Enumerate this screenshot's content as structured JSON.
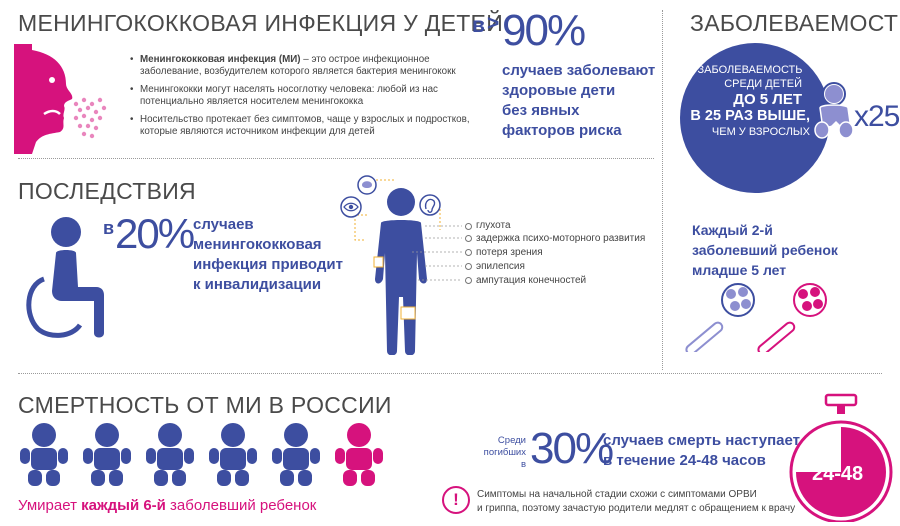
{
  "section1": {
    "title": "МЕНИНГОКОККОВАЯ ИНФЕКЦИЯ У ДЕТЕЙ",
    "bullets": [
      {
        "bold": "Менингококковая инфекция (МИ)",
        "text": " – это острое инфекционное заболевание, возбудителем которого является бактерия менингококк"
      },
      {
        "bold": "",
        "text": "Менингококки могут населять носоглотку человека: любой из нас потенциально является носителем менингококка"
      },
      {
        "bold": "",
        "text": "Носительство протекает без симптомов, чаще у взрослых и подростков, которые являются источником инфекции для детей"
      }
    ],
    "stat_prefix": "в",
    "stat_gt": ">",
    "stat_value": "90%",
    "stat_text": [
      "случаев заболевают",
      "здоровые дети",
      "без явных",
      "факторов риска"
    ]
  },
  "incidence": {
    "title": "ЗАБОЛЕВАЕМОСТЬ",
    "circle_lines": [
      "ЗАБОЛЕВАЕМОСТЬ",
      "СРЕДИ ДЕТЕЙ",
      "ДО 5 ЛЕТ",
      "В 25 РАЗ ВЫШЕ,",
      "ЧЕМ У ВЗРОСЛЫХ"
    ],
    "multiplier": "x25",
    "every_second_1": "Каждый 2-й",
    "every_second_2": "заболевший ребенок",
    "every_second_3": "младше 5 лет"
  },
  "consequences": {
    "title": "ПОСЛЕДСТВИЯ",
    "stat_prefix": "в",
    "stat_value": "20%",
    "stat_text": [
      "случаев",
      "менингококковая",
      "инфекция приводит",
      "к инвалидизации"
    ],
    "legend": [
      "глухота",
      "задержка психо-моторного развития",
      "потеря зрения",
      "эпилепсия",
      "ампутация конечностей"
    ]
  },
  "mortality": {
    "title": "СМЕРТНОСТЬ ОТ МИ В РОССИИ",
    "caption_pre": "Умирает ",
    "caption_bold": "каждый 6-й",
    "caption_post": " заболевший ребенок",
    "baby_count": 6,
    "highlighted_index": 5,
    "among_1": "Среди",
    "among_2": "погибших",
    "among_3": "в",
    "stat_value": "30%",
    "stat_text_1": "случаев смерть наступает",
    "stat_text_2": "в течение 24-48 часов",
    "clock_label": "24-48",
    "warning_icon": "!",
    "warning_1": "Симптомы на начальной стадии схожи с симптомами ОРВИ",
    "warning_2": "и гриппа, поэтому зачастую родители медлят с обращением к врачу"
  },
  "colors": {
    "blue": "#3d4ea0",
    "pink": "#d6127d",
    "purple_light": "#8d8fd0"
  }
}
